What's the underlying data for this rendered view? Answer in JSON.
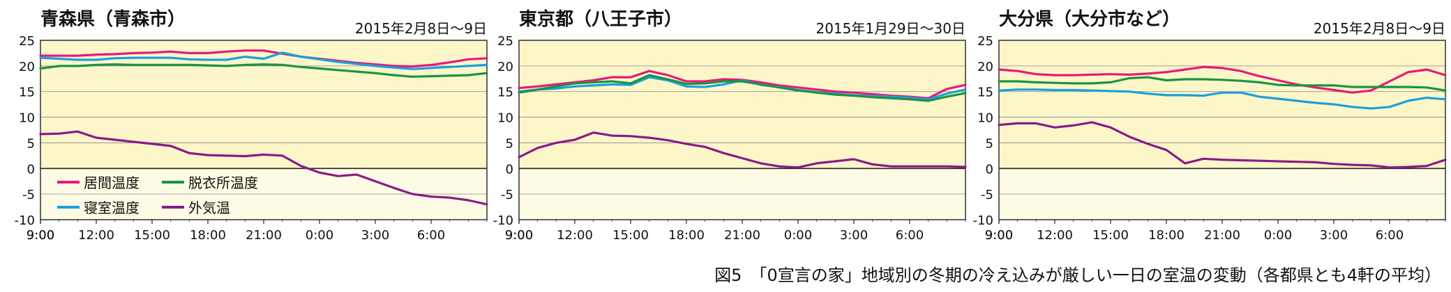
{
  "caption": "図5　「0宣言の家」地域別の冬期の冷え込みが厳しい一日の室温の変動（各都県とも4軒の平均）",
  "legend": [
    "居間温度",
    "寝室温度",
    "脱衣所温度",
    "外気温"
  ],
  "colors": {
    "居間温度": "#e8197a",
    "脱衣所温度": "#1a9442",
    "寝室温度": "#1aa0dd",
    "外気温": "#8a1a8a",
    "plot_bg": "#fdf6c9",
    "below_zero_bg": "#fefbe4",
    "axis": "#222222",
    "grid": "#888888"
  },
  "chart_data": [
    {
      "type": "line",
      "title": "青森県（青森市）",
      "subtitle": "2015年2月8日～9日",
      "x": [
        "9:00",
        "10:00",
        "11:00",
        "12:00",
        "13:00",
        "14:00",
        "15:00",
        "16:00",
        "17:00",
        "18:00",
        "19:00",
        "20:00",
        "21:00",
        "22:00",
        "23:00",
        "0:00",
        "1:00",
        "2:00",
        "3:00",
        "4:00",
        "5:00",
        "6:00",
        "7:00",
        "8:00",
        "9:00"
      ],
      "xticks": [
        "9:00",
        "12:00",
        "15:00",
        "18:00",
        "21:00",
        "0:00",
        "3:00",
        "6:00",
        "9:00"
      ],
      "yticks": [
        25,
        20,
        15,
        10,
        5,
        0,
        -5,
        -10
      ],
      "ylim": [
        -10,
        25
      ],
      "grid": true,
      "series": [
        {
          "name": "居間温度",
          "values": [
            22.0,
            22.0,
            22.0,
            22.2,
            22.3,
            22.5,
            22.6,
            22.8,
            22.5,
            22.5,
            22.8,
            23.0,
            23.0,
            22.4,
            21.8,
            21.4,
            21.0,
            20.6,
            20.3,
            20.0,
            19.9,
            20.2,
            20.7,
            21.3,
            21.5
          ]
        },
        {
          "name": "寝室温度",
          "values": [
            21.6,
            21.4,
            21.2,
            21.2,
            21.5,
            21.6,
            21.6,
            21.6,
            21.3,
            21.2,
            21.2,
            21.8,
            21.4,
            22.6,
            21.8,
            21.3,
            20.8,
            20.4,
            20.0,
            19.7,
            19.4,
            19.6,
            19.8,
            20.0,
            20.2
          ]
        },
        {
          "name": "脱衣所温度",
          "values": [
            19.5,
            20.0,
            20.0,
            20.2,
            20.3,
            20.2,
            20.2,
            20.2,
            20.2,
            20.1,
            20.0,
            20.2,
            20.3,
            20.2,
            19.8,
            19.5,
            19.2,
            18.9,
            18.6,
            18.2,
            17.9,
            18.0,
            18.1,
            18.2,
            18.6
          ]
        },
        {
          "name": "外気温",
          "values": [
            6.7,
            6.8,
            7.2,
            6.0,
            5.6,
            5.2,
            4.8,
            4.4,
            3.0,
            2.6,
            2.5,
            2.4,
            2.7,
            2.5,
            0.5,
            -0.8,
            -1.5,
            -1.2,
            -2.5,
            -3.8,
            -5.0,
            -5.5,
            -5.7,
            -6.2,
            -7.0
          ]
        }
      ]
    },
    {
      "type": "line",
      "title": "東京都（八王子市）",
      "subtitle": "2015年1月29日～30日",
      "x": [
        "9:00",
        "10:00",
        "11:00",
        "12:00",
        "13:00",
        "14:00",
        "15:00",
        "16:00",
        "17:00",
        "18:00",
        "19:00",
        "20:00",
        "21:00",
        "22:00",
        "23:00",
        "0:00",
        "1:00",
        "2:00",
        "3:00",
        "4:00",
        "5:00",
        "6:00",
        "7:00",
        "8:00",
        "9:00"
      ],
      "xticks": [
        "9:00",
        "12:00",
        "15:00",
        "18:00",
        "21:00",
        "0:00",
        "3:00",
        "6:00",
        "9:00"
      ],
      "yticks": [
        25,
        20,
        15,
        10,
        5,
        0,
        -5,
        -10
      ],
      "ylim": [
        -10,
        25
      ],
      "grid": true,
      "series": [
        {
          "name": "居間温度",
          "values": [
            15.7,
            16.0,
            16.4,
            16.8,
            17.2,
            17.8,
            17.8,
            19.0,
            18.2,
            17.0,
            17.0,
            17.4,
            17.3,
            16.8,
            16.2,
            15.8,
            15.4,
            15.0,
            14.8,
            14.5,
            14.2,
            14.0,
            13.7,
            15.5,
            16.3
          ]
        },
        {
          "name": "寝室温度",
          "values": [
            15.0,
            15.4,
            15.6,
            16.0,
            16.2,
            16.4,
            16.3,
            17.8,
            17.2,
            16.0,
            15.9,
            16.4,
            17.2,
            16.3,
            15.9,
            15.3,
            14.9,
            14.6,
            14.3,
            14.1,
            14.0,
            13.8,
            13.5,
            14.6,
            15.4
          ]
        },
        {
          "name": "脱衣所温度",
          "values": [
            14.8,
            15.4,
            16.0,
            16.6,
            16.8,
            17.0,
            16.6,
            18.2,
            17.4,
            16.5,
            16.6,
            17.0,
            17.0,
            16.4,
            15.8,
            15.2,
            14.8,
            14.4,
            14.2,
            13.9,
            13.7,
            13.5,
            13.2,
            14.0,
            14.7
          ]
        },
        {
          "name": "外気温",
          "values": [
            2.2,
            4.0,
            5.0,
            5.6,
            7.0,
            6.4,
            6.3,
            6.0,
            5.5,
            4.8,
            4.2,
            3.0,
            2.0,
            1.0,
            0.4,
            0.2,
            1.0,
            1.4,
            1.8,
            0.8,
            0.4,
            0.4,
            0.4,
            0.4,
            0.3
          ]
        }
      ]
    },
    {
      "type": "line",
      "title": "大分県（大分市など）",
      "subtitle": "2015年2月8日～9日",
      "x": [
        "9:00",
        "10:00",
        "11:00",
        "12:00",
        "13:00",
        "14:00",
        "15:00",
        "16:00",
        "17:00",
        "18:00",
        "19:00",
        "20:00",
        "21:00",
        "22:00",
        "23:00",
        "0:00",
        "1:00",
        "2:00",
        "3:00",
        "4:00",
        "5:00",
        "6:00",
        "7:00",
        "8:00",
        "9:00"
      ],
      "xticks": [
        "9:00",
        "12:00",
        "15:00",
        "18:00",
        "21:00",
        "0:00",
        "3:00",
        "6:00",
        "9:00"
      ],
      "yticks": [
        25,
        20,
        15,
        10,
        5,
        0,
        -5,
        -10
      ],
      "ylim": [
        -10,
        25
      ],
      "grid": true,
      "series": [
        {
          "name": "居間温度",
          "values": [
            19.3,
            19.0,
            18.4,
            18.2,
            18.2,
            18.3,
            18.4,
            18.3,
            18.5,
            18.8,
            19.3,
            19.8,
            19.6,
            19.0,
            18.0,
            17.2,
            16.4,
            15.8,
            15.3,
            14.8,
            15.2,
            17.0,
            18.8,
            19.3,
            18.2
          ]
        },
        {
          "name": "寝室温度",
          "values": [
            15.2,
            15.4,
            15.4,
            15.3,
            15.3,
            15.2,
            15.1,
            15.0,
            14.6,
            14.3,
            14.3,
            14.2,
            14.8,
            14.8,
            14.0,
            13.6,
            13.2,
            12.8,
            12.5,
            12.0,
            11.7,
            12.0,
            13.2,
            13.8,
            13.5
          ]
        },
        {
          "name": "脱衣所温度",
          "values": [
            17.0,
            17.0,
            16.8,
            16.7,
            16.6,
            16.6,
            16.8,
            17.6,
            17.8,
            17.2,
            17.4,
            17.4,
            17.3,
            17.1,
            16.8,
            16.3,
            16.2,
            16.2,
            16.2,
            15.9,
            15.9,
            15.9,
            15.9,
            15.8,
            15.2
          ]
        },
        {
          "name": "外気温",
          "values": [
            8.5,
            8.8,
            8.8,
            8.0,
            8.4,
            9.0,
            8.0,
            6.2,
            4.8,
            3.6,
            1.0,
            1.9,
            1.7,
            1.6,
            1.5,
            1.4,
            1.3,
            1.2,
            0.9,
            0.7,
            0.6,
            0.2,
            0.3,
            0.5,
            1.7
          ]
        }
      ]
    }
  ]
}
